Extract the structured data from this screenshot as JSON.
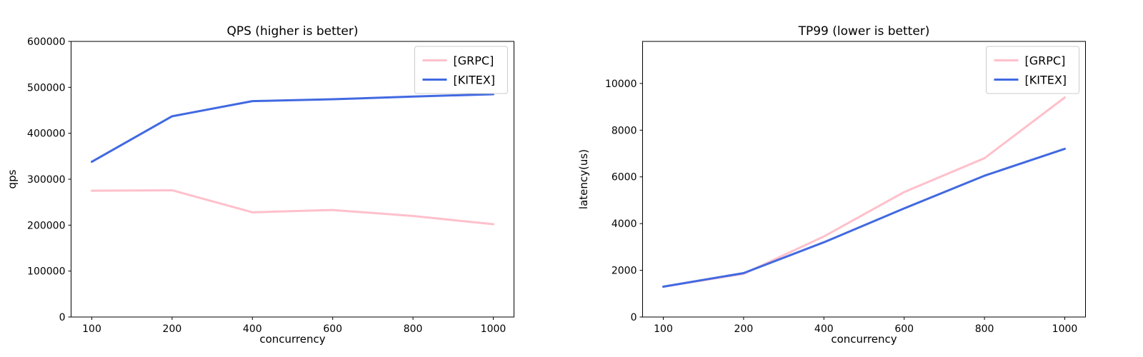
{
  "figure_background": "#ffffff",
  "colors": {
    "grpc_line": "#ffc0cb",
    "kitex_line": "#4169e1",
    "axis": "#000000",
    "legend_border": "#cccccc",
    "legend_fill": "#ffffff"
  },
  "chart_data": [
    {
      "id": "qps",
      "type": "line",
      "title": "QPS (higher is better)",
      "xlabel": "concurrency",
      "ylabel": "qps",
      "categories": [
        100,
        200,
        400,
        600,
        800,
        1000
      ],
      "x_spacing": "even",
      "xtick_labels": [
        "100",
        "200",
        "400",
        "600",
        "800",
        "1000"
      ],
      "ylim": [
        0,
        600000
      ],
      "yticks": [
        0,
        100000,
        200000,
        300000,
        400000,
        500000,
        600000
      ],
      "ytick_labels": [
        "0",
        "100000",
        "200000",
        "300000",
        "400000",
        "500000",
        "600000"
      ],
      "grid": false,
      "legend_position": "upper right",
      "series": [
        {
          "name": "[GRPC]",
          "color": "#ffc0cb",
          "values": [
            275000,
            276000,
            228000,
            233000,
            220000,
            202000
          ]
        },
        {
          "name": "[KITEX]",
          "color": "#4169e1",
          "values": [
            338000,
            437000,
            470000,
            474000,
            480000,
            485000
          ]
        }
      ]
    },
    {
      "id": "tp99",
      "type": "line",
      "title": "TP99 (lower is better)",
      "xlabel": "concurrency",
      "ylabel": "latency(us)",
      "categories": [
        100,
        200,
        400,
        600,
        800,
        1000
      ],
      "x_spacing": "even",
      "xtick_labels": [
        "100",
        "200",
        "400",
        "600",
        "800",
        "1000"
      ],
      "ylim": [
        0,
        11800
      ],
      "yticks": [
        0,
        2000,
        4000,
        6000,
        8000,
        10000
      ],
      "ytick_labels": [
        "0",
        "2000",
        "4000",
        "6000",
        "8000",
        "10000"
      ],
      "grid": false,
      "legend_position": "upper right",
      "series": [
        {
          "name": "[GRPC]",
          "color": "#ffc0cb",
          "values": [
            1300,
            1850,
            3450,
            5350,
            6800,
            9400
          ]
        },
        {
          "name": "[KITEX]",
          "color": "#4169e1",
          "values": [
            1300,
            1880,
            3200,
            4650,
            6050,
            7200
          ]
        }
      ]
    }
  ]
}
